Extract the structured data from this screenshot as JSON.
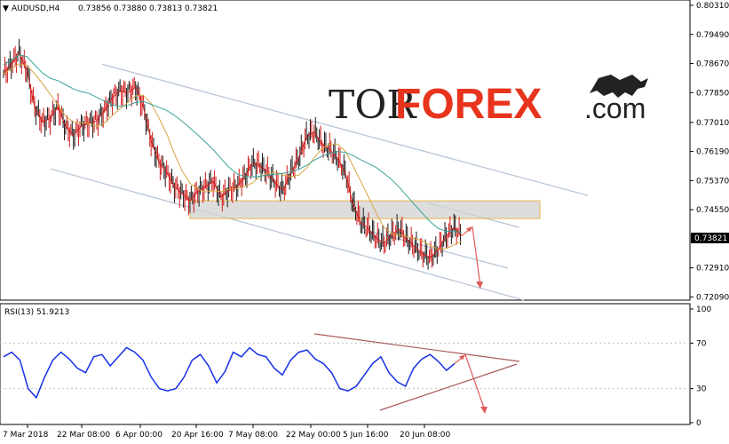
{
  "header": {
    "symbol": "AUDUSD,H4",
    "open": "0.73856",
    "high": "0.73880",
    "low": "0.73813",
    "close": "0.73821"
  },
  "rsi_header": "RSI(13) 51.9213",
  "current_price_label": "0.73821",
  "logo": {
    "part1": "TOR",
    "part2": "FOREX",
    "part3": ".com"
  },
  "colors": {
    "candle_up": "#1a1a1a",
    "candle_down": "#d11a1a",
    "ma_fast": "#d9a441",
    "ma_slow": "#3aa39b",
    "channel": "#b9c6d6",
    "rsi_line": "#1530e6",
    "triangle": "#a95a5a",
    "arrow": "#e05a5a",
    "zone_fill": "#d2d2d2",
    "zone_border": "#e8b44a",
    "logo_dark": "#222222",
    "logo_accent": "#e8341c"
  },
  "chart_data": [
    {
      "type": "line",
      "title": "AUDUSD,H4",
      "series": [
        {
          "name": "AUDUSD",
          "values": [
            0.7838,
            0.7865,
            0.7895,
            0.7848,
            0.7745,
            0.7702,
            0.7712,
            0.7745,
            0.7688,
            0.7665,
            0.769,
            0.77,
            0.7705,
            0.7735,
            0.777,
            0.779,
            0.7785,
            0.78,
            0.7745,
            0.765,
            0.759,
            0.756,
            0.752,
            0.75,
            0.748,
            0.7505,
            0.752,
            0.7535,
            0.749,
            0.751,
            0.752,
            0.7545,
            0.7585,
            0.758,
            0.756,
            0.753,
            0.751,
            0.756,
            0.76,
            0.766,
            0.7675,
            0.764,
            0.7625,
            0.76,
            0.756,
            0.747,
            0.742,
            0.74,
            0.7375,
            0.736,
            0.7385,
            0.74,
            0.737,
            0.735,
            0.733,
            0.732,
            0.7345,
            0.738,
            0.7405,
            0.7382
          ]
        }
      ],
      "x_tick_labels": [
        "7 Mar 2018",
        "22 Mar 08:00",
        "6 Apr 00:00",
        "20 Apr 16:00",
        "7 May 08:00",
        "22 May 00:00",
        "5 Jun 16:00",
        "20 Jun 08:00"
      ],
      "y_tick_labels": [
        "0.80310",
        "0.79490",
        "0.78670",
        "0.77850",
        "0.77010",
        "0.76190",
        "0.75370",
        "0.74550",
        "0.73821",
        "0.72910",
        "0.72090"
      ],
      "ylim": [
        0.7205,
        0.8031
      ],
      "resistance_zone": [
        0.743,
        0.748
      ]
    },
    {
      "type": "line",
      "title": "RSI(13) 51.9213",
      "series": [
        {
          "name": "RSI(13)",
          "values": [
            58,
            62,
            55,
            30,
            22,
            40,
            55,
            62,
            56,
            48,
            44,
            58,
            60,
            50,
            58,
            66,
            62,
            55,
            40,
            30,
            28,
            30,
            40,
            55,
            60,
            50,
            35,
            45,
            62,
            58,
            66,
            60,
            58,
            48,
            42,
            55,
            62,
            64,
            56,
            52,
            44,
            30,
            28,
            32,
            42,
            52,
            58,
            44,
            36,
            32,
            48,
            56,
            60,
            54,
            46,
            52
          ]
        }
      ],
      "y_tick_labels": [
        "100",
        "70",
        "30",
        "0"
      ],
      "ylim": [
        0,
        100
      ]
    }
  ]
}
